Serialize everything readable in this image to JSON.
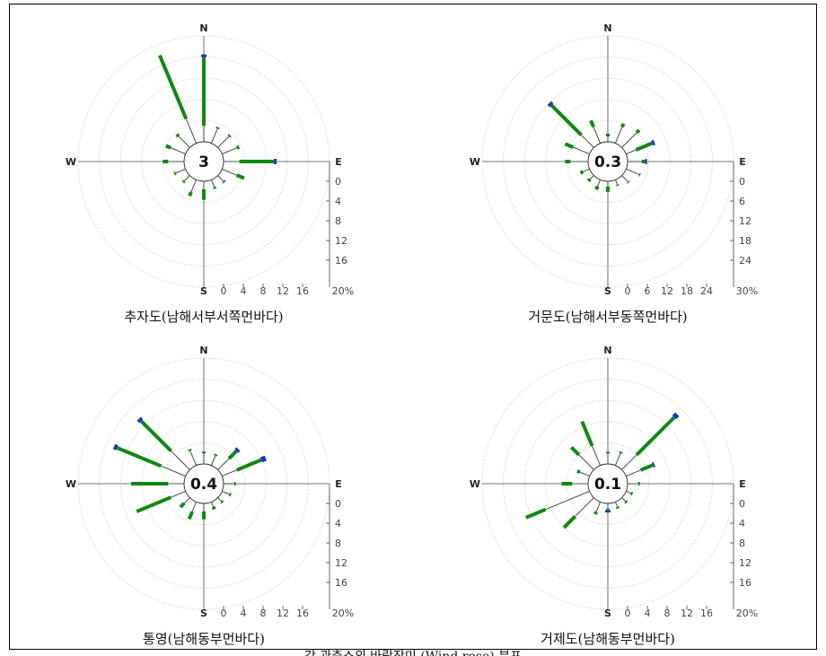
{
  "footnote": "각 관측소의 바람장미 (Wind rose) 분포",
  "chart_data": [
    {
      "type": "wind-rose",
      "caption": "추자도(남해서부서쪽먼바다)",
      "calm": "3",
      "directions": [
        "N",
        "E",
        "S",
        "W"
      ],
      "scale_ticks": [
        "0",
        "4",
        "8",
        "12",
        "16"
      ],
      "scale_max_label": "20%",
      "rmax": 20,
      "sectors": [
        {
          "dir": "N",
          "deg": 0,
          "thin": 3,
          "green": 13,
          "blue": 0.5
        },
        {
          "dir": "NNE",
          "deg": 22.5,
          "thin": 3,
          "green": 0.3
        },
        {
          "dir": "NE",
          "deg": 45,
          "thin": 3,
          "green": 0.3
        },
        {
          "dir": "ENE",
          "deg": 67.5,
          "thin": 3,
          "green": 0.5
        },
        {
          "dir": "E",
          "deg": 90,
          "thin": 3,
          "green": 6.5,
          "blue": 0.5
        },
        {
          "dir": "ESE",
          "deg": 112.5,
          "thin": 3,
          "green": 1.5
        },
        {
          "dir": "SE",
          "deg": 135,
          "thin": 1.5,
          "green": 0.3
        },
        {
          "dir": "SSE",
          "deg": 157.5,
          "thin": 1.5,
          "green": 0.3
        },
        {
          "dir": "S",
          "deg": 180,
          "thin": 1.5,
          "green": 2
        },
        {
          "dir": "SSW",
          "deg": 202.5,
          "thin": 2.5,
          "green": 0.8
        },
        {
          "dir": "SW",
          "deg": 225,
          "thin": 1.5,
          "green": 0.3
        },
        {
          "dir": "WSW",
          "deg": 247.5,
          "thin": 2,
          "green": 0.3
        },
        {
          "dir": "W",
          "deg": 270,
          "thin": 3,
          "green": 1
        },
        {
          "dir": "WNW",
          "deg": 292.5,
          "thin": 3,
          "green": 1
        },
        {
          "dir": "NW",
          "deg": 315,
          "thin": 3,
          "green": 0.5
        },
        {
          "dir": "NNW",
          "deg": 337.5,
          "thin": 5,
          "green": 13
        }
      ]
    },
    {
      "type": "wind-rose",
      "caption": "거문도(남해서부동쪽먼바다)",
      "calm": "0.3",
      "directions": [
        "N",
        "E",
        "S",
        "W"
      ],
      "scale_ticks": [
        "0",
        "6",
        "12",
        "18",
        "24"
      ],
      "scale_max_label": "30%",
      "rmax": 30,
      "sectors": [
        {
          "dir": "N",
          "deg": 0,
          "thin": 1.5,
          "green": 0.8
        },
        {
          "dir": "NNE",
          "deg": 22.5,
          "thin": 5,
          "green": 1
        },
        {
          "dir": "NE",
          "deg": 45,
          "thin": 6,
          "green": 1
        },
        {
          "dir": "ENE",
          "deg": 67.5,
          "thin": 3,
          "green": 5,
          "blue": 0.7
        },
        {
          "dir": "E",
          "deg": 90,
          "thin": 4,
          "green": 1,
          "blue": 0.5
        },
        {
          "dir": "ESE",
          "deg": 112.5,
          "thin": 4,
          "green": 0.3
        },
        {
          "dir": "SE",
          "deg": 135,
          "thin": 2.5,
          "green": 0.3
        },
        {
          "dir": "SSE",
          "deg": 157.5,
          "thin": 1.5,
          "green": 0.3
        },
        {
          "dir": "S",
          "deg": 180,
          "thin": 1.5,
          "green": 1.5
        },
        {
          "dir": "SSW",
          "deg": 202.5,
          "thin": 2,
          "green": 1
        },
        {
          "dir": "SW",
          "deg": 225,
          "thin": 1.5,
          "green": 0.7
        },
        {
          "dir": "WSW",
          "deg": 247.5,
          "thin": 2,
          "green": 0.8
        },
        {
          "dir": "W",
          "deg": 270,
          "thin": 5,
          "green": 1.5
        },
        {
          "dir": "WNW",
          "deg": 292.5,
          "thin": 5,
          "green": 2.5
        },
        {
          "dir": "NW",
          "deg": 315,
          "thin": 5,
          "green": 12,
          "blue": 0.8
        },
        {
          "dir": "NNW",
          "deg": 337.5,
          "thin": 5,
          "green": 2
        }
      ]
    },
    {
      "type": "wind-rose",
      "caption": "통영(남해동부먼바다)",
      "calm": "0.4",
      "directions": [
        "N",
        "E",
        "S",
        "W"
      ],
      "scale_ticks": [
        "0",
        "4",
        "8",
        "12",
        "16"
      ],
      "scale_max_label": "20%",
      "rmax": 20,
      "sectors": [
        {
          "dir": "N",
          "deg": 0,
          "thin": 2,
          "green": 0.3
        },
        {
          "dir": "NNE",
          "deg": 22.5,
          "thin": 2,
          "green": 0.3
        },
        {
          "dir": "NE",
          "deg": 45,
          "thin": 3,
          "green": 2,
          "blue": 0.5
        },
        {
          "dir": "ENE",
          "deg": 67.5,
          "thin": 3,
          "green": 5,
          "blue": 0.9
        },
        {
          "dir": "E",
          "deg": 90,
          "thin": 2,
          "green": 0.3
        },
        {
          "dir": "ESE",
          "deg": 112.5,
          "thin": 1.5,
          "green": 0.3
        },
        {
          "dir": "SE",
          "deg": 135,
          "thin": 1,
          "green": 0.3
        },
        {
          "dir": "SSE",
          "deg": 157.5,
          "thin": 1,
          "green": 0.5
        },
        {
          "dir": "S",
          "deg": 180,
          "thin": 1.5,
          "green": 1.5
        },
        {
          "dir": "SSW",
          "deg": 202.5,
          "thin": 2,
          "green": 1.5
        },
        {
          "dir": "SW",
          "deg": 225,
          "thin": 1.5,
          "green": 1
        },
        {
          "dir": "WSW",
          "deg": 247.5,
          "thin": 3,
          "green": 7
        },
        {
          "dir": "W",
          "deg": 270,
          "thin": 3,
          "green": 7
        },
        {
          "dir": "WNW",
          "deg": 292.5,
          "thin": 5,
          "green": 9,
          "blue": 0.6
        },
        {
          "dir": "NW",
          "deg": 315,
          "thin": 5,
          "green": 8,
          "blue": 0.6
        },
        {
          "dir": "NNW",
          "deg": 337.5,
          "thin": 3,
          "green": 0.3
        }
      ]
    },
    {
      "type": "wind-rose",
      "caption": "거제도(남해동부먼바다)",
      "calm": "0.1",
      "directions": [
        "N",
        "E",
        "S",
        "W"
      ],
      "scale_ticks": [
        "0",
        "4",
        "8",
        "12",
        "16"
      ],
      "scale_max_label": "20%",
      "rmax": 20,
      "sectors": [
        {
          "dir": "N",
          "deg": 0,
          "thin": 2,
          "green": 0.3
        },
        {
          "dir": "NNE",
          "deg": 22.5,
          "thin": 2.5,
          "green": 0.3
        },
        {
          "dir": "NE",
          "deg": 45,
          "thin": 4,
          "green": 10,
          "blue": 0.8
        },
        {
          "dir": "ENE",
          "deg": 67.5,
          "thin": 3,
          "green": 2.5,
          "blue": 0.3
        },
        {
          "dir": "E",
          "deg": 90,
          "thin": 2,
          "green": 0.3
        },
        {
          "dir": "ESE",
          "deg": 112.5,
          "thin": 1,
          "green": 0.3
        },
        {
          "dir": "SE",
          "deg": 135,
          "thin": 1,
          "green": 0.3
        },
        {
          "dir": "SSE",
          "deg": 157.5,
          "thin": 1,
          "green": 0.3
        },
        {
          "dir": "S",
          "deg": 180,
          "thin": 1,
          "green": 0.3,
          "blue": 0.4
        },
        {
          "dir": "SSW",
          "deg": 202.5,
          "thin": 2,
          "green": 0.5
        },
        {
          "dir": "SW",
          "deg": 225,
          "thin": 5,
          "green": 3
        },
        {
          "dir": "WSW",
          "deg": 247.5,
          "thin": 9,
          "green": 4
        },
        {
          "dir": "W",
          "deg": 270,
          "thin": 3,
          "green": 2
        },
        {
          "dir": "WNW",
          "deg": 292.5,
          "thin": 2,
          "green": 0.5
        },
        {
          "dir": "NW",
          "deg": 315,
          "thin": 4,
          "green": 2
        },
        {
          "dir": "NNW",
          "deg": 337.5,
          "thin": 4,
          "green": 5
        }
      ]
    }
  ],
  "colors": {
    "thin": "#555555",
    "green": "#118811",
    "blue": "#1a2fd6",
    "grid": "#c9c9c9"
  }
}
